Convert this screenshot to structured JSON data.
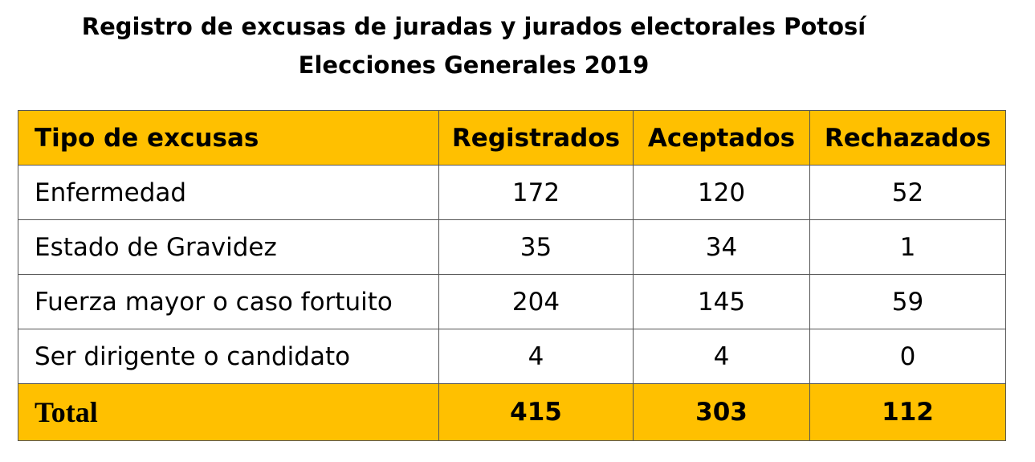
{
  "header": {
    "title": "Registro de excusas de juradas y jurados electorales Potosí",
    "subtitle": "Elecciones Generales 2019"
  },
  "table": {
    "columns": [
      "Tipo de excusas",
      "Registrados",
      "Aceptados",
      "Rechazados"
    ],
    "rows": [
      [
        "Enfermedad",
        172,
        120,
        52
      ],
      [
        "Estado de Gravidez",
        35,
        34,
        1
      ],
      [
        "Fuerza mayor o caso fortuito",
        204,
        145,
        59
      ],
      [
        "Ser dirigente o candidato",
        4,
        4,
        0
      ]
    ],
    "total": [
      "Total",
      415,
      303,
      112
    ]
  }
}
